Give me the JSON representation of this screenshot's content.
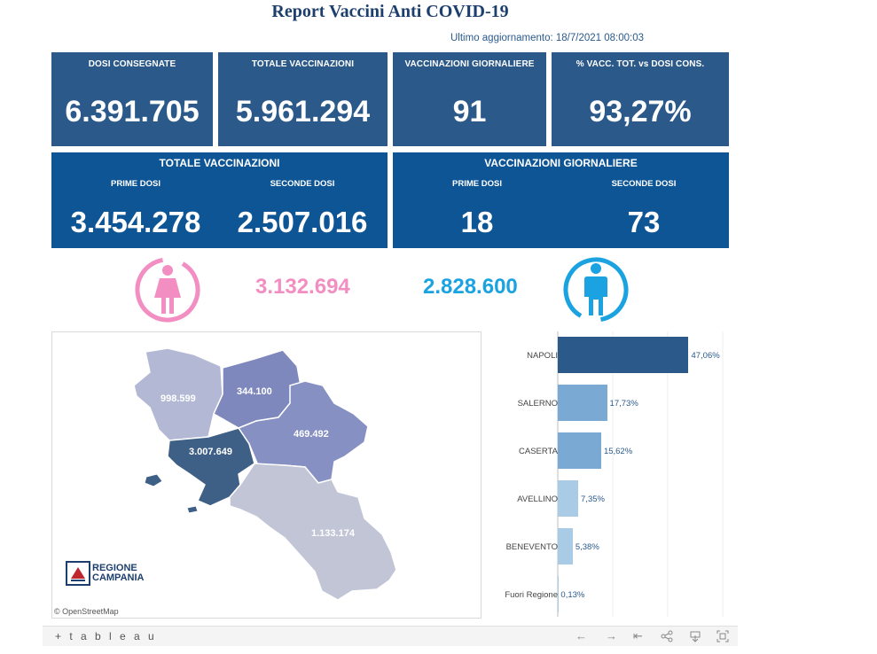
{
  "header": {
    "title": "Report Vaccini Anti COVID-19",
    "updated": "Ultimo aggiornamento: 18/7/2021 08:00:03"
  },
  "kpis": [
    {
      "label": "DOSI  CONSEGNATE",
      "value": "6.391.705"
    },
    {
      "label": "TOTALE VACCINAZIONI",
      "value": "5.961.294"
    },
    {
      "label": "VACCINAZIONI GIORNALIERE",
      "value": "91"
    },
    {
      "label": "% VACC. TOT. vs DOSI CONS.",
      "value": "93,27%"
    }
  ],
  "totale_panel": {
    "title": "TOTALE VACCINAZIONI",
    "first_label": "PRIME DOSI",
    "first_value": "3.454.278",
    "second_label": "SECONDE DOSI",
    "second_value": "2.507.016"
  },
  "giornaliere_panel": {
    "title": "VACCINAZIONI GIORNALIERE",
    "first_label": "PRIME DOSI",
    "first_value": "18",
    "second_label": "SECONDE DOSI",
    "second_value": "73"
  },
  "gender": {
    "female_value": "3.132.694",
    "female_color": "#f28ec1",
    "male_value": "2.828.600",
    "male_color": "#1aa3e0"
  },
  "map": {
    "provinces": [
      {
        "name": "Caserta",
        "value": "998.599",
        "color": "#b3b9d4"
      },
      {
        "name": "Benevento",
        "value": "344.100",
        "color": "#7f88bc"
      },
      {
        "name": "Avellino",
        "value": "469.492",
        "color": "#8790c2"
      },
      {
        "name": "Napoli",
        "value": "3.007.649",
        "color": "#3e5f86"
      },
      {
        "name": "Salerno",
        "value": "1.133.174",
        "color": "#c1c5d6"
      }
    ],
    "attribution": "© OpenStreetMap",
    "logo_line1": "REGIONE",
    "logo_line2": "CAMPANIA"
  },
  "chart_data": {
    "type": "bar",
    "orientation": "horizontal",
    "categories": [
      "NAPOLI",
      "SALERNO",
      "CASERTA",
      "AVELLINO",
      "BENEVENTO",
      "Fuori Regione"
    ],
    "values": [
      47.06,
      17.73,
      15.62,
      7.35,
      5.38,
      0.13
    ],
    "labels": [
      "47,06%",
      "17,73%",
      "15,62%",
      "7,35%",
      "5,38%",
      "0,13%"
    ],
    "colors": [
      "#2b5989",
      "#7aaad3",
      "#7aaad3",
      "#a9cbe6",
      "#a9cbe6",
      "#a9cbe6"
    ],
    "xlim": [
      0,
      60
    ]
  },
  "toolbar": {
    "logo": "+ t a b l e a u",
    "buttons": [
      "←",
      "→",
      "⇤",
      "share",
      "download",
      "fullscreen"
    ]
  }
}
